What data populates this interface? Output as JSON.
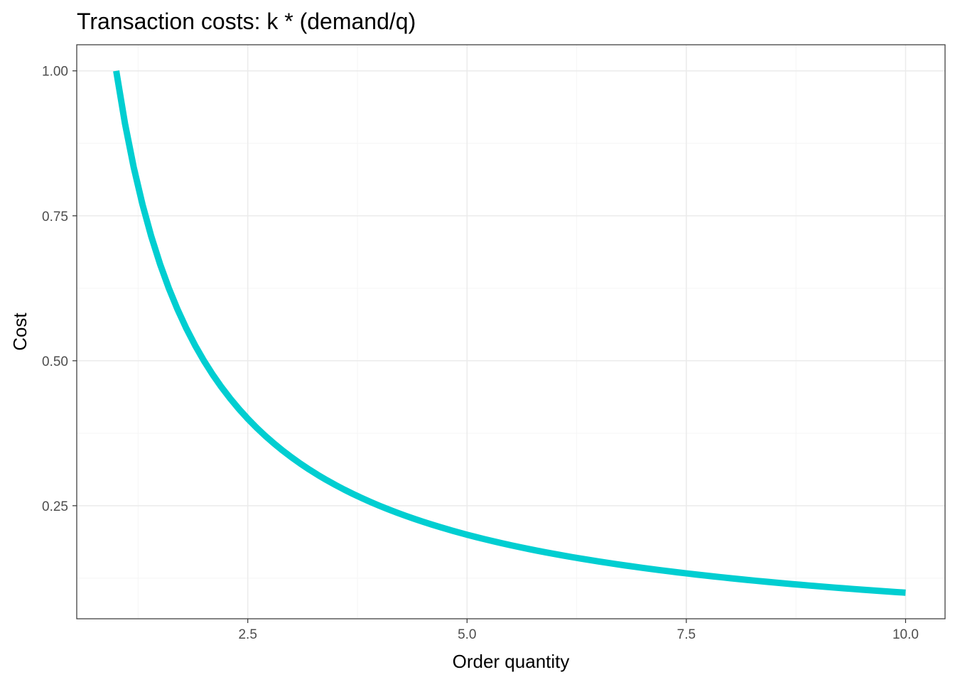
{
  "chart_data": {
    "type": "line",
    "title": "Transaction costs:  k * (demand/q)",
    "xlabel": "Order quantity",
    "ylabel": "Cost",
    "xlim": [
      0.55,
      10.45
    ],
    "ylim": [
      0.055,
      1.045
    ],
    "x_ticks": [
      2.5,
      5.0,
      7.5,
      10.0
    ],
    "x_tick_labels": [
      "2.5",
      "5.0",
      "7.5",
      "10.0"
    ],
    "x_minor_ticks": [
      1.25,
      3.75,
      6.25,
      8.75
    ],
    "y_ticks": [
      0.25,
      0.5,
      0.75,
      1.0
    ],
    "y_tick_labels": [
      "0.25",
      "0.50",
      "0.75",
      "1.00"
    ],
    "y_minor_ticks": [
      0.125,
      0.375,
      0.625,
      0.875
    ],
    "grid": true,
    "series": [
      {
        "color": "#00CED1",
        "function": "1/x",
        "x": [
          1.0,
          1.1,
          1.2,
          1.3,
          1.4,
          1.5,
          1.6,
          1.7,
          1.8,
          1.9,
          2.0,
          2.1,
          2.2,
          2.3,
          2.4,
          2.5,
          2.6,
          2.7,
          2.8,
          2.9,
          3.0,
          3.1,
          3.2,
          3.3,
          3.4,
          3.5,
          3.6,
          3.7,
          3.8,
          3.9,
          4.0,
          4.1,
          4.2,
          4.3,
          4.4,
          4.5,
          4.6,
          4.7,
          4.8,
          4.9,
          5.0,
          5.1,
          5.2,
          5.3,
          5.4,
          5.5,
          5.6,
          5.7,
          5.8,
          5.9,
          6.0,
          6.1,
          6.2,
          6.3,
          6.4,
          6.5,
          6.6,
          6.7,
          6.8,
          6.9,
          7.0,
          7.1,
          7.2,
          7.3,
          7.4,
          7.5,
          7.6,
          7.7,
          7.8,
          7.9,
          8.0,
          8.1,
          8.2,
          8.3,
          8.4,
          8.5,
          8.6,
          8.7,
          8.8,
          8.9,
          9.0,
          9.1,
          9.2,
          9.3,
          9.4,
          9.5,
          9.6,
          9.7,
          9.8,
          9.9,
          10.0
        ]
      }
    ],
    "colors": {
      "panel_border": "#333333",
      "grid_major": "#ebebeb",
      "grid_minor": "#f5f5f5",
      "tick_mark": "#333333"
    }
  }
}
